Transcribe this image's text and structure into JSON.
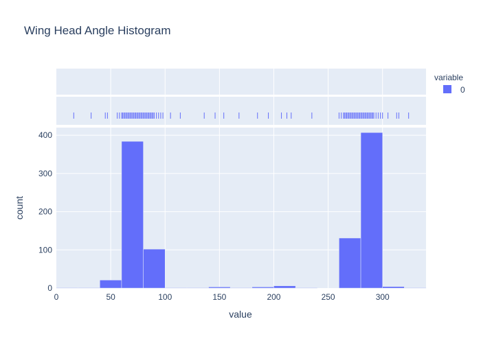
{
  "chart_data": {
    "type": "bar",
    "title": "Wing Head Angle Histogram",
    "xlabel": "value",
    "ylabel": "count",
    "xlim": [
      0,
      340
    ],
    "ylim": [
      0,
      420
    ],
    "bin_width": 20,
    "x_ticks": [
      0,
      50,
      100,
      150,
      200,
      250,
      300
    ],
    "y_ticks": [
      0,
      100,
      200,
      300,
      400
    ],
    "legend": {
      "title": "variable",
      "placement": "right",
      "entries": [
        "0"
      ]
    },
    "series": [
      {
        "name": "0",
        "color": "#636efa",
        "bins": [
          {
            "x0": 0,
            "x1": 20,
            "count": 1
          },
          {
            "x0": 20,
            "x1": 40,
            "count": 1
          },
          {
            "x0": 40,
            "x1": 60,
            "count": 21
          },
          {
            "x0": 60,
            "x1": 80,
            "count": 384
          },
          {
            "x0": 80,
            "x1": 100,
            "count": 102
          },
          {
            "x0": 100,
            "x1": 120,
            "count": 1
          },
          {
            "x0": 120,
            "x1": 140,
            "count": 1
          },
          {
            "x0": 140,
            "x1": 160,
            "count": 3
          },
          {
            "x0": 160,
            "x1": 180,
            "count": 1
          },
          {
            "x0": 180,
            "x1": 200,
            "count": 3
          },
          {
            "x0": 200,
            "x1": 220,
            "count": 6
          },
          {
            "x0": 220,
            "x1": 240,
            "count": 1
          },
          {
            "x0": 240,
            "x1": 260,
            "count": 0
          },
          {
            "x0": 260,
            "x1": 280,
            "count": 131
          },
          {
            "x0": 280,
            "x1": 300,
            "count": 407
          },
          {
            "x0": 300,
            "x1": 320,
            "count": 4
          },
          {
            "x0": 320,
            "x1": 340,
            "count": 1
          }
        ],
        "rug_values": [
          16,
          32,
          45,
          47,
          56,
          58,
          60,
          61,
          62,
          63,
          64,
          65,
          66,
          67,
          68,
          69,
          70,
          71,
          72,
          73,
          74,
          75,
          76,
          77,
          78,
          79,
          80,
          81,
          82,
          83,
          84,
          85,
          86,
          87,
          88,
          89,
          90,
          92,
          94,
          96,
          98,
          105,
          114,
          136,
          146,
          154,
          168,
          185,
          195,
          207,
          212,
          216,
          235,
          260,
          262,
          264,
          265,
          266,
          267,
          268,
          269,
          270,
          271,
          272,
          273,
          274,
          275,
          276,
          277,
          278,
          279,
          280,
          281,
          282,
          283,
          284,
          285,
          286,
          287,
          288,
          289,
          290,
          291,
          292,
          294,
          296,
          298,
          300,
          305,
          313,
          315,
          324
        ]
      }
    ]
  }
}
